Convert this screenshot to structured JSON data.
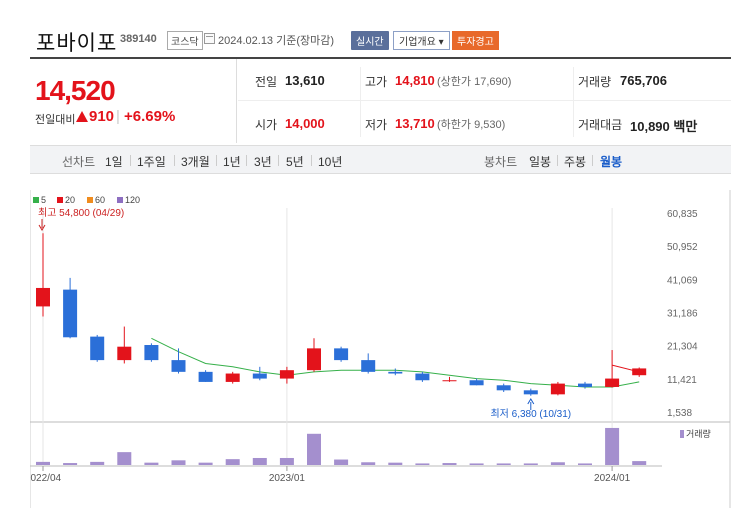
{
  "header": {
    "stock_name": "포바이포",
    "stock_code": "389140",
    "market": "코스닥",
    "date_text": "2024.02.13 기준(장마감)",
    "btn_realtime": "실시간",
    "btn_company": "기업개요 ▾",
    "btn_warning": "투자경고"
  },
  "quote": {
    "price": "14,520",
    "change_label": "전일대비",
    "change_value": "910",
    "change_pct": "+6.69%",
    "prev_close_label": "전일",
    "prev_close": "13,610",
    "open_label": "시가",
    "open": "14,000",
    "high_label": "고가",
    "high": "14,810",
    "upper_limit": "(상한가 17,690)",
    "low_label": "저가",
    "low": "13,710",
    "lower_limit": "(하한가 9,530)",
    "volume_label": "거래량",
    "volume": "765,706",
    "amount_label": "거래대금",
    "amount": "10,890 백만"
  },
  "toolbar": {
    "line_chart_label": "선차트",
    "periods": [
      "1일",
      "1주일",
      "3개월",
      "1년",
      "3년",
      "5년",
      "10년"
    ],
    "candle_chart_label": "봉차트",
    "candle_periods": [
      "일봉",
      "주봉",
      "월봉"
    ],
    "active_candle": "월봉"
  },
  "colors": {
    "up": "#e3131b",
    "down": "#2b6fd8",
    "ma5": "#36b04a",
    "ma20": "#e3131b",
    "ma60": "#f08c1e",
    "ma120": "#8e6fc1",
    "volume": "#a48fce"
  },
  "chart_data": {
    "type": "candlestick",
    "legend": [
      "5",
      "20",
      "60",
      "120"
    ],
    "y_ticks": [
      "60,835",
      "50,952",
      "41,069",
      "31,186",
      "21,304",
      "11,421",
      "1,538"
    ],
    "ylim": [
      1538,
      60835
    ],
    "x_ticks": [
      {
        "label": "2022/04",
        "index": 0
      },
      {
        "label": "2023/01",
        "index": 9
      },
      {
        "label": "2024/01",
        "index": 21
      }
    ],
    "annotations": {
      "max_label": "최고 54,800 (04/29)",
      "min_label": "최저 6,380 (10/31)"
    },
    "volume_legend": "거래량",
    "candles": [
      {
        "o": 33000,
        "h": 54800,
        "l": 30000,
        "c": 38500
      },
      {
        "o": 38000,
        "h": 41500,
        "l": 23500,
        "c": 23800
      },
      {
        "o": 24000,
        "h": 24500,
        "l": 16500,
        "c": 17000
      },
      {
        "o": 17000,
        "h": 27000,
        "l": 16000,
        "c": 21000
      },
      {
        "o": 21500,
        "h": 22000,
        "l": 16500,
        "c": 17000
      },
      {
        "o": 17000,
        "h": 20500,
        "l": 13000,
        "c": 13500
      },
      {
        "o": 13500,
        "h": 14000,
        "l": 10500,
        "c": 10500
      },
      {
        "o": 10500,
        "h": 13500,
        "l": 10000,
        "c": 13000
      },
      {
        "o": 13000,
        "h": 15000,
        "l": 11000,
        "c": 11500
      },
      {
        "o": 11500,
        "h": 15000,
        "l": 10000,
        "c": 14000
      },
      {
        "o": 14000,
        "h": 23500,
        "l": 13500,
        "c": 20500
      },
      {
        "o": 20500,
        "h": 21000,
        "l": 16500,
        "c": 17000
      },
      {
        "o": 17000,
        "h": 19000,
        "l": 13000,
        "c": 13500
      },
      {
        "o": 13500,
        "h": 14500,
        "l": 12500,
        "c": 13000
      },
      {
        "o": 13000,
        "h": 13500,
        "l": 10500,
        "c": 11000
      },
      {
        "o": 11000,
        "h": 12000,
        "l": 10500,
        "c": 11000
      },
      {
        "o": 11000,
        "h": 11500,
        "l": 9500,
        "c": 9500
      },
      {
        "o": 9500,
        "h": 10000,
        "l": 7500,
        "c": 8000
      },
      {
        "o": 8000,
        "h": 8500,
        "l": 6380,
        "c": 6800
      },
      {
        "o": 6800,
        "h": 10500,
        "l": 6500,
        "c": 10000
      },
      {
        "o": 10000,
        "h": 10500,
        "l": 8500,
        "c": 9000
      },
      {
        "o": 9000,
        "h": 20000,
        "l": 8800,
        "c": 11500
      },
      {
        "o": 12500,
        "h": 14810,
        "l": 12000,
        "c": 14520
      }
    ],
    "ma5": [
      null,
      null,
      null,
      null,
      23500,
      19500,
      16000,
      15000,
      13500,
      12500,
      13500,
      14000,
      14000,
      14000,
      13500,
      12500,
      11500,
      11000,
      10000,
      9500,
      9000,
      9000,
      10500
    ],
    "ma20": [
      null,
      null,
      null,
      null,
      null,
      null,
      null,
      null,
      null,
      null,
      null,
      null,
      null,
      null,
      null,
      null,
      null,
      null,
      null,
      null,
      null,
      15500,
      13500
    ],
    "volume": [
      0.08,
      0.05,
      0.08,
      0.33,
      0.06,
      0.12,
      0.06,
      0.15,
      0.18,
      0.18,
      0.8,
      0.14,
      0.07,
      0.06,
      0.04,
      0.05,
      0.04,
      0.04,
      0.04,
      0.07,
      0.04,
      0.95,
      0.1
    ]
  }
}
